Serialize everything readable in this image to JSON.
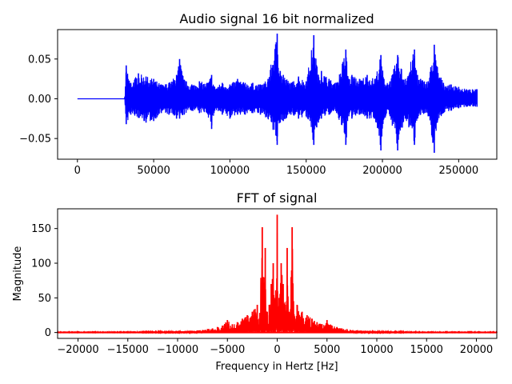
{
  "chart_data": [
    {
      "type": "line",
      "title": "Audio signal 16 bit normalized",
      "xlabel": "",
      "ylabel": "",
      "xlim": [
        -13000,
        275000
      ],
      "ylim": [
        -0.076,
        0.087
      ],
      "xticks": [
        0,
        50000,
        100000,
        150000,
        200000,
        250000
      ],
      "xtick_labels": [
        "0",
        "50000",
        "100000",
        "150000",
        "200000",
        "250000"
      ],
      "yticks": [
        -0.05,
        0.0,
        0.05
      ],
      "ytick_labels": [
        "−0.05",
        "0.00",
        "0.05"
      ],
      "grid": false,
      "color": "#0000ff",
      "series": [
        {
          "x": [
            0,
            31000,
            32000,
            35000,
            40000,
            45000,
            50000,
            55000,
            60000,
            65000,
            67000,
            70000,
            75000,
            80000,
            85000,
            88000,
            90000,
            95000,
            100000,
            105000,
            110000,
            115000,
            120000,
            125000,
            131000,
            133000,
            135000,
            140000,
            145000,
            150000,
            155000,
            158000,
            160000,
            165000,
            170000,
            176000,
            178000,
            180000,
            185000,
            190000,
            195000,
            199000,
            201000,
            205000,
            210000,
            215000,
            221000,
            223000,
            225000,
            230000,
            234000,
            236000,
            240000,
            245000,
            250000,
            255000,
            262000
          ],
          "upper": [
            0.0,
            0.0,
            0.042,
            0.02,
            0.032,
            0.028,
            0.025,
            0.018,
            0.02,
            0.03,
            0.05,
            0.024,
            0.018,
            0.022,
            0.02,
            0.03,
            0.015,
            0.02,
            0.018,
            0.025,
            0.02,
            0.02,
            0.018,
            0.025,
            0.082,
            0.035,
            0.03,
            0.02,
            0.028,
            0.022,
            0.08,
            0.03,
            0.035,
            0.025,
            0.02,
            0.062,
            0.025,
            0.03,
            0.025,
            0.03,
            0.025,
            0.055,
            0.025,
            0.022,
            0.055,
            0.025,
            0.062,
            0.03,
            0.025,
            0.022,
            0.068,
            0.04,
            0.02,
            0.018,
            0.015,
            0.012,
            0.012
          ],
          "lower": [
            0.0,
            0.0,
            -0.032,
            -0.02,
            -0.024,
            -0.03,
            -0.028,
            -0.018,
            -0.02,
            -0.025,
            -0.025,
            -0.02,
            -0.015,
            -0.018,
            -0.018,
            -0.038,
            -0.015,
            -0.02,
            -0.025,
            -0.02,
            -0.02,
            -0.018,
            -0.02,
            -0.025,
            -0.058,
            -0.03,
            -0.028,
            -0.02,
            -0.025,
            -0.022,
            -0.058,
            -0.03,
            -0.025,
            -0.02,
            -0.018,
            -0.058,
            -0.022,
            -0.025,
            -0.02,
            -0.025,
            -0.025,
            -0.065,
            -0.025,
            -0.022,
            -0.065,
            -0.025,
            -0.058,
            -0.025,
            -0.02,
            -0.022,
            -0.068,
            -0.03,
            -0.018,
            -0.015,
            -0.012,
            -0.01,
            -0.01
          ]
        }
      ]
    },
    {
      "type": "line",
      "title": "FFT of signal",
      "xlabel": "Frequency in Hertz [Hz]",
      "ylabel": "Magnitude",
      "xlim": [
        -22050,
        22050
      ],
      "ylim": [
        -8.5,
        178.5
      ],
      "xticks": [
        -20000,
        -15000,
        -10000,
        -5000,
        0,
        5000,
        10000,
        15000,
        20000
      ],
      "xtick_labels": [
        "−20000",
        "−15000",
        "−10000",
        "−5000",
        "0",
        "5000",
        "10000",
        "15000",
        "20000"
      ],
      "yticks": [
        0,
        50,
        100,
        150
      ],
      "ytick_labels": [
        "0",
        "50",
        "100",
        "150"
      ],
      "grid": false,
      "color": "#ff0000",
      "series": [
        {
          "x": [
            -22050,
            -15000,
            -10000,
            -8000,
            -7000,
            -6500,
            -6000,
            -5500,
            -5000,
            -4500,
            -4000,
            -3500,
            -3000,
            -2500,
            -2000,
            -1800,
            -1500,
            -1400,
            -1200,
            -1000,
            -800,
            -600,
            -400,
            -200,
            0,
            200,
            400,
            600,
            800,
            1000,
            1200,
            1400,
            1500,
            1800,
            2000,
            2500,
            3000,
            3500,
            4000,
            4500,
            5000,
            5500,
            6000,
            6500,
            7000,
            8000,
            10000,
            15000,
            22050
          ],
          "magnitude": [
            1,
            1,
            2,
            3,
            5,
            6,
            8,
            10,
            18,
            12,
            15,
            20,
            25,
            30,
            40,
            20,
            152,
            80,
            122,
            30,
            40,
            70,
            100,
            50,
            170,
            50,
            100,
            70,
            40,
            122,
            30,
            80,
            152,
            20,
            40,
            30,
            25,
            20,
            15,
            12,
            18,
            10,
            8,
            6,
            5,
            3,
            2,
            1,
            1
          ]
        }
      ]
    }
  ]
}
